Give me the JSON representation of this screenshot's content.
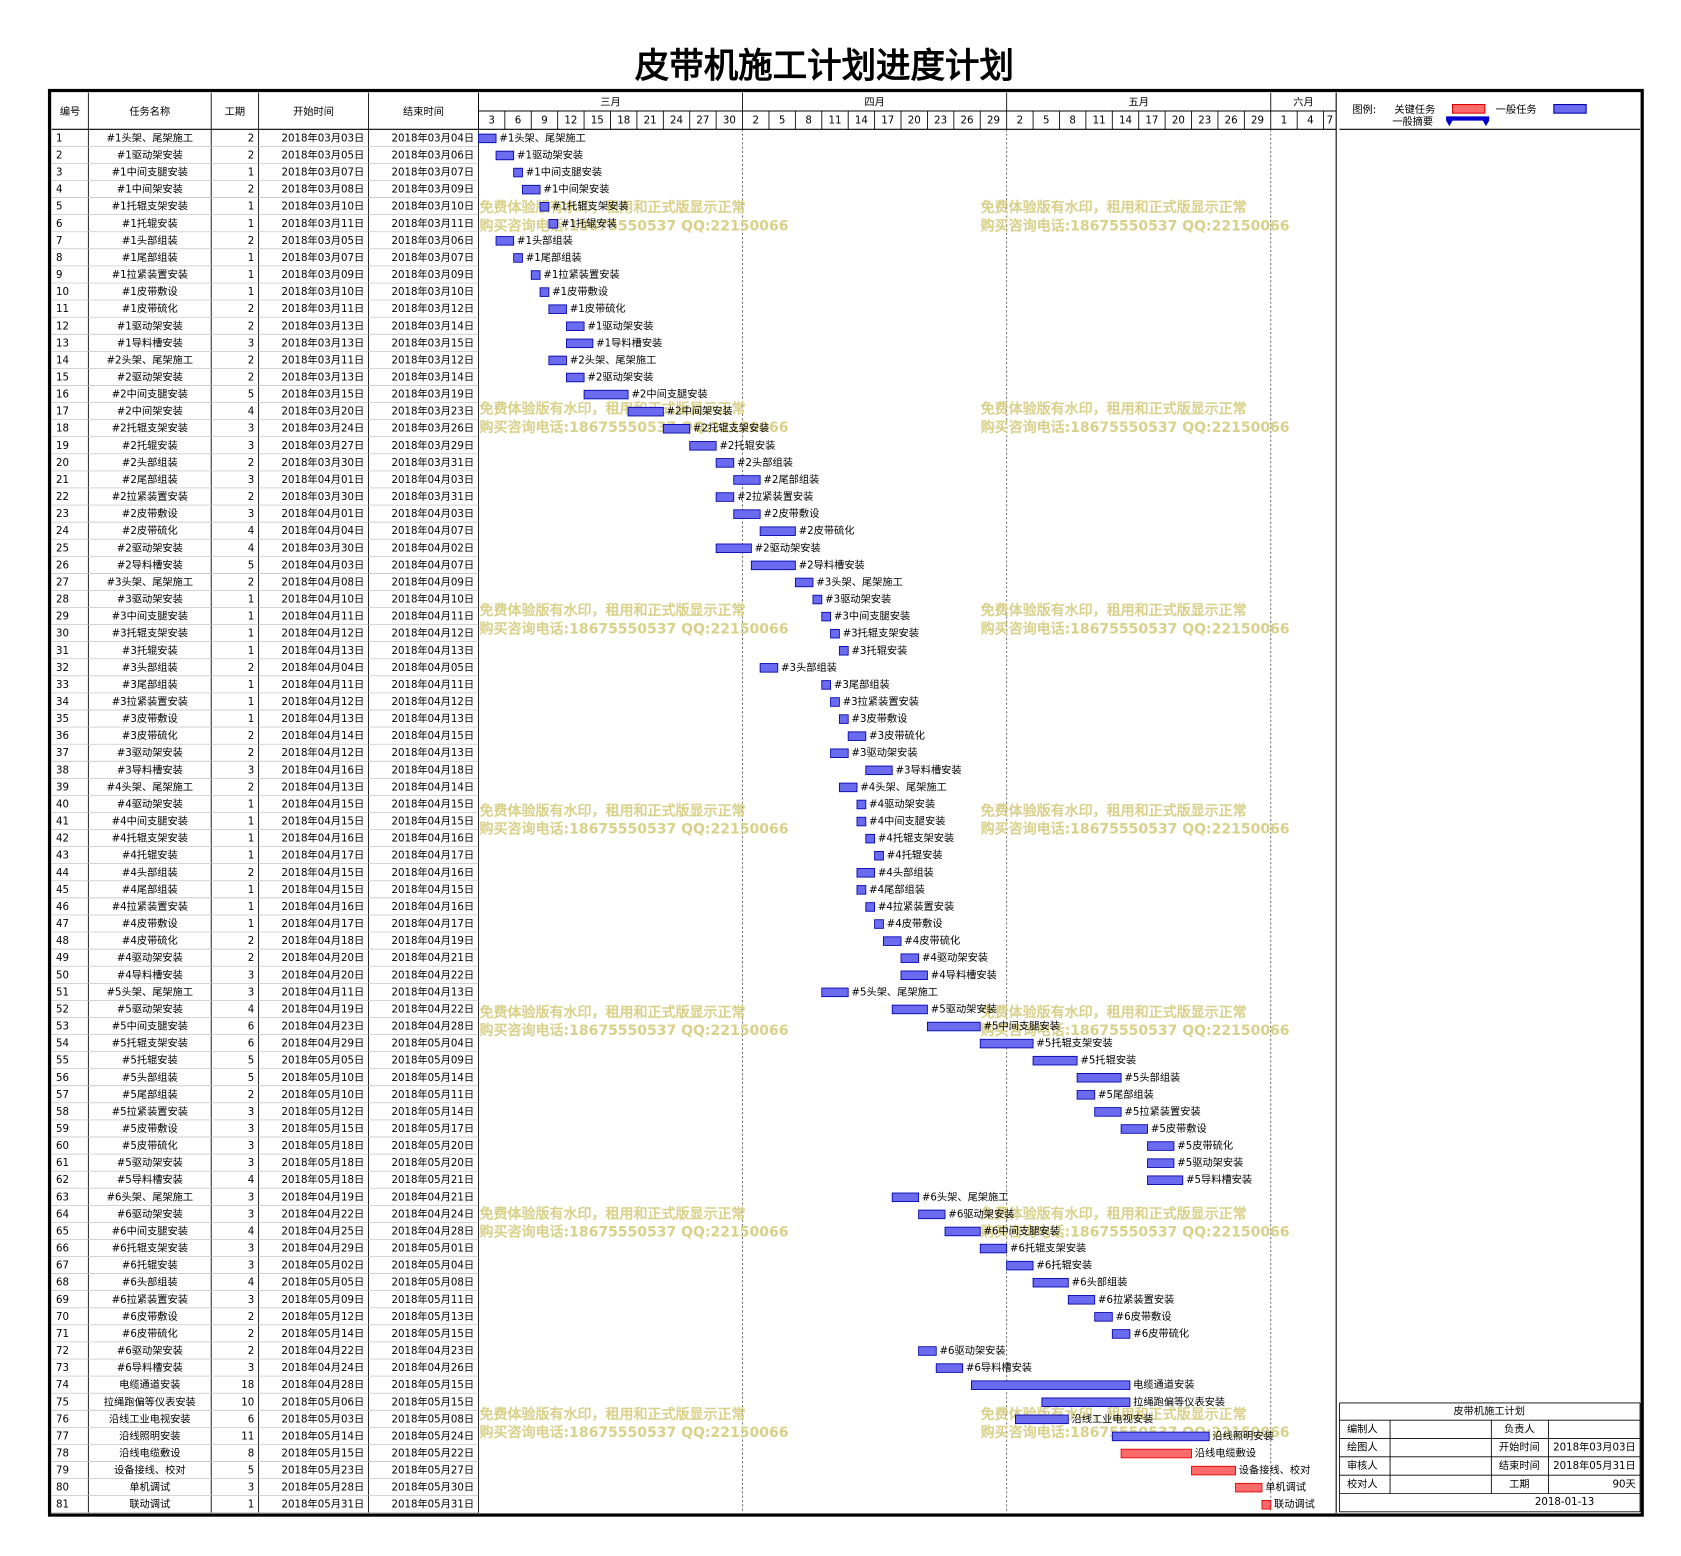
{
  "title": "皮带机施工计划进度计划",
  "columns": [
    "编号",
    "任务名称",
    "工期",
    "开始时间",
    "结束时间"
  ],
  "timeline": {
    "months": [
      {
        "label": "三月",
        "days": [
          3,
          6,
          9,
          12,
          15,
          18,
          21,
          24,
          27,
          30
        ]
      },
      {
        "label": "四月",
        "days": [
          2,
          5,
          8,
          11,
          14,
          17,
          20,
          23,
          26,
          29
        ]
      },
      {
        "label": "五月",
        "days": [
          2,
          5,
          8,
          11,
          14,
          17,
          20,
          23,
          26,
          29
        ]
      },
      {
        "label": "六月",
        "days": [
          1,
          4,
          7
        ]
      }
    ]
  },
  "legend": {
    "title": "图例:",
    "critical": "关键任务",
    "task": "一般任务",
    "summary": "一般摘要",
    "critical_color": "#ff6b6b",
    "task_color": "#6b6bf0"
  },
  "info": {
    "title": "皮带机施工计划",
    "left_labels": [
      "编制人",
      "绘图人",
      "审核人",
      "校对人"
    ],
    "right_labels": [
      "负责人",
      "开始时间",
      "结束时间",
      "工期"
    ],
    "right_values": [
      "2018年03月03日",
      "2018年05月31日",
      "90天"
    ],
    "date": "2018-01-13"
  },
  "watermark": [
    "免费体验版有水印，租用和正式版显示正常",
    "购买咨询电话:18675550537 QQ:22150066"
  ],
  "tasks": [
    {
      "id": 1,
      "name": "#1头架、尾架施工",
      "days": 2,
      "start": "2018年03月03日",
      "end": "2018年03月04日"
    },
    {
      "id": 2,
      "name": "#1驱动架安装",
      "days": 2,
      "start": "2018年03月05日",
      "end": "2018年03月06日"
    },
    {
      "id": 3,
      "name": "#1中间支腿安装",
      "days": 1,
      "start": "2018年03月07日",
      "end": "2018年03月07日"
    },
    {
      "id": 4,
      "name": "#1中间架安装",
      "days": 2,
      "start": "2018年03月08日",
      "end": "2018年03月09日"
    },
    {
      "id": 5,
      "name": "#1托辊支架安装",
      "days": 1,
      "start": "2018年03月10日",
      "end": "2018年03月10日"
    },
    {
      "id": 6,
      "name": "#1托辊安装",
      "days": 1,
      "start": "2018年03月11日",
      "end": "2018年03月11日"
    },
    {
      "id": 7,
      "name": "#1头部组装",
      "days": 2,
      "start": "2018年03月05日",
      "end": "2018年03月06日"
    },
    {
      "id": 8,
      "name": "#1尾部组装",
      "days": 1,
      "start": "2018年03月07日",
      "end": "2018年03月07日"
    },
    {
      "id": 9,
      "name": "#1拉紧装置安装",
      "days": 1,
      "start": "2018年03月09日",
      "end": "2018年03月09日"
    },
    {
      "id": 10,
      "name": "#1皮带敷设",
      "days": 1,
      "start": "2018年03月10日",
      "end": "2018年03月10日"
    },
    {
      "id": 11,
      "name": "#1皮带硫化",
      "days": 2,
      "start": "2018年03月11日",
      "end": "2018年03月12日"
    },
    {
      "id": 12,
      "name": "#1驱动架安装",
      "days": 2,
      "start": "2018年03月13日",
      "end": "2018年03月14日"
    },
    {
      "id": 13,
      "name": "#1导料槽安装",
      "days": 3,
      "start": "2018年03月13日",
      "end": "2018年03月15日"
    },
    {
      "id": 14,
      "name": "#2头架、尾架施工",
      "days": 2,
      "start": "2018年03月11日",
      "end": "2018年03月12日"
    },
    {
      "id": 15,
      "name": "#2驱动架安装",
      "days": 2,
      "start": "2018年03月13日",
      "end": "2018年03月14日"
    },
    {
      "id": 16,
      "name": "#2中间支腿安装",
      "days": 5,
      "start": "2018年03月15日",
      "end": "2018年03月19日"
    },
    {
      "id": 17,
      "name": "#2中间架安装",
      "days": 4,
      "start": "2018年03月20日",
      "end": "2018年03月23日"
    },
    {
      "id": 18,
      "name": "#2托辊支架安装",
      "days": 3,
      "start": "2018年03月24日",
      "end": "2018年03月26日"
    },
    {
      "id": 19,
      "name": "#2托辊安装",
      "days": 3,
      "start": "2018年03月27日",
      "end": "2018年03月29日"
    },
    {
      "id": 20,
      "name": "#2头部组装",
      "days": 2,
      "start": "2018年03月30日",
      "end": "2018年03月31日"
    },
    {
      "id": 21,
      "name": "#2尾部组装",
      "days": 3,
      "start": "2018年04月01日",
      "end": "2018年04月03日"
    },
    {
      "id": 22,
      "name": "#2拉紧装置安装",
      "days": 2,
      "start": "2018年03月30日",
      "end": "2018年03月31日"
    },
    {
      "id": 23,
      "name": "#2皮带敷设",
      "days": 3,
      "start": "2018年04月01日",
      "end": "2018年04月03日"
    },
    {
      "id": 24,
      "name": "#2皮带硫化",
      "days": 4,
      "start": "2018年04月04日",
      "end": "2018年04月07日"
    },
    {
      "id": 25,
      "name": "#2驱动架安装",
      "days": 4,
      "start": "2018年03月30日",
      "end": "2018年04月02日"
    },
    {
      "id": 26,
      "name": "#2导料槽安装",
      "days": 5,
      "start": "2018年04月03日",
      "end": "2018年04月07日"
    },
    {
      "id": 27,
      "name": "#3头架、尾架施工",
      "days": 2,
      "start": "2018年04月08日",
      "end": "2018年04月09日"
    },
    {
      "id": 28,
      "name": "#3驱动架安装",
      "days": 1,
      "start": "2018年04月10日",
      "end": "2018年04月10日"
    },
    {
      "id": 29,
      "name": "#3中间支腿安装",
      "days": 1,
      "start": "2018年04月11日",
      "end": "2018年04月11日"
    },
    {
      "id": 30,
      "name": "#3托辊支架安装",
      "days": 1,
      "start": "2018年04月12日",
      "end": "2018年04月12日"
    },
    {
      "id": 31,
      "name": "#3托辊安装",
      "days": 1,
      "start": "2018年04月13日",
      "end": "2018年04月13日"
    },
    {
      "id": 32,
      "name": "#3头部组装",
      "days": 2,
      "start": "2018年04月04日",
      "end": "2018年04月05日"
    },
    {
      "id": 33,
      "name": "#3尾部组装",
      "days": 1,
      "start": "2018年04月11日",
      "end": "2018年04月11日"
    },
    {
      "id": 34,
      "name": "#3拉紧装置安装",
      "days": 1,
      "start": "2018年04月12日",
      "end": "2018年04月12日"
    },
    {
      "id": 35,
      "name": "#3皮带敷设",
      "days": 1,
      "start": "2018年04月13日",
      "end": "2018年04月13日"
    },
    {
      "id": 36,
      "name": "#3皮带硫化",
      "days": 2,
      "start": "2018年04月14日",
      "end": "2018年04月15日"
    },
    {
      "id": 37,
      "name": "#3驱动架安装",
      "days": 2,
      "start": "2018年04月12日",
      "end": "2018年04月13日"
    },
    {
      "id": 38,
      "name": "#3导料槽安装",
      "days": 3,
      "start": "2018年04月16日",
      "end": "2018年04月18日"
    },
    {
      "id": 39,
      "name": "#4头架、尾架施工",
      "days": 2,
      "start": "2018年04月13日",
      "end": "2018年04月14日"
    },
    {
      "id": 40,
      "name": "#4驱动架安装",
      "days": 1,
      "start": "2018年04月15日",
      "end": "2018年04月15日"
    },
    {
      "id": 41,
      "name": "#4中间支腿安装",
      "days": 1,
      "start": "2018年04月15日",
      "end": "2018年04月15日"
    },
    {
      "id": 42,
      "name": "#4托辊支架安装",
      "days": 1,
      "start": "2018年04月16日",
      "end": "2018年04月16日"
    },
    {
      "id": 43,
      "name": "#4托辊安装",
      "days": 1,
      "start": "2018年04月17日",
      "end": "2018年04月17日"
    },
    {
      "id": 44,
      "name": "#4头部组装",
      "days": 2,
      "start": "2018年04月15日",
      "end": "2018年04月16日"
    },
    {
      "id": 45,
      "name": "#4尾部组装",
      "days": 1,
      "start": "2018年04月15日",
      "end": "2018年04月15日"
    },
    {
      "id": 46,
      "name": "#4拉紧装置安装",
      "days": 1,
      "start": "2018年04月16日",
      "end": "2018年04月16日"
    },
    {
      "id": 47,
      "name": "#4皮带敷设",
      "days": 1,
      "start": "2018年04月17日",
      "end": "2018年04月17日"
    },
    {
      "id": 48,
      "name": "#4皮带硫化",
      "days": 2,
      "start": "2018年04月18日",
      "end": "2018年04月19日"
    },
    {
      "id": 49,
      "name": "#4驱动架安装",
      "days": 2,
      "start": "2018年04月20日",
      "end": "2018年04月21日"
    },
    {
      "id": 50,
      "name": "#4导料槽安装",
      "days": 3,
      "start": "2018年04月20日",
      "end": "2018年04月22日"
    },
    {
      "id": 51,
      "name": "#5头架、尾架施工",
      "days": 3,
      "start": "2018年04月11日",
      "end": "2018年04月13日"
    },
    {
      "id": 52,
      "name": "#5驱动架安装",
      "days": 4,
      "start": "2018年04月19日",
      "end": "2018年04月22日"
    },
    {
      "id": 53,
      "name": "#5中间支腿安装",
      "days": 6,
      "start": "2018年04月23日",
      "end": "2018年04月28日"
    },
    {
      "id": 54,
      "name": "#5托辊支架安装",
      "days": 6,
      "start": "2018年04月29日",
      "end": "2018年05月04日"
    },
    {
      "id": 55,
      "name": "#5托辊安装",
      "days": 5,
      "start": "2018年05月05日",
      "end": "2018年05月09日"
    },
    {
      "id": 56,
      "name": "#5头部组装",
      "days": 5,
      "start": "2018年05月10日",
      "end": "2018年05月14日"
    },
    {
      "id": 57,
      "name": "#5尾部组装",
      "days": 2,
      "start": "2018年05月10日",
      "end": "2018年05月11日"
    },
    {
      "id": 58,
      "name": "#5拉紧装置安装",
      "days": 3,
      "start": "2018年05月12日",
      "end": "2018年05月14日"
    },
    {
      "id": 59,
      "name": "#5皮带敷设",
      "days": 3,
      "start": "2018年05月15日",
      "end": "2018年05月17日"
    },
    {
      "id": 60,
      "name": "#5皮带硫化",
      "days": 3,
      "start": "2018年05月18日",
      "end": "2018年05月20日"
    },
    {
      "id": 61,
      "name": "#5驱动架安装",
      "days": 3,
      "start": "2018年05月18日",
      "end": "2018年05月20日"
    },
    {
      "id": 62,
      "name": "#5导料槽安装",
      "days": 4,
      "start": "2018年05月18日",
      "end": "2018年05月21日"
    },
    {
      "id": 63,
      "name": "#6头架、尾架施工",
      "days": 3,
      "start": "2018年04月19日",
      "end": "2018年04月21日"
    },
    {
      "id": 64,
      "name": "#6驱动架安装",
      "days": 3,
      "start": "2018年04月22日",
      "end": "2018年04月24日"
    },
    {
      "id": 65,
      "name": "#6中间支腿安装",
      "days": 4,
      "start": "2018年04月25日",
      "end": "2018年04月28日"
    },
    {
      "id": 66,
      "name": "#6托辊支架安装",
      "days": 3,
      "start": "2018年04月29日",
      "end": "2018年05月01日"
    },
    {
      "id": 67,
      "name": "#6托辊安装",
      "days": 3,
      "start": "2018年05月02日",
      "end": "2018年05月04日"
    },
    {
      "id": 68,
      "name": "#6头部组装",
      "days": 4,
      "start": "2018年05月05日",
      "end": "2018年05月08日"
    },
    {
      "id": 69,
      "name": "#6拉紧装置安装",
      "days": 3,
      "start": "2018年05月09日",
      "end": "2018年05月11日"
    },
    {
      "id": 70,
      "name": "#6皮带敷设",
      "days": 2,
      "start": "2018年05月12日",
      "end": "2018年05月13日"
    },
    {
      "id": 71,
      "name": "#6皮带硫化",
      "days": 2,
      "start": "2018年05月14日",
      "end": "2018年05月15日"
    },
    {
      "id": 72,
      "name": "#6驱动架安装",
      "days": 2,
      "start": "2018年04月22日",
      "end": "2018年04月23日"
    },
    {
      "id": 73,
      "name": "#6导料槽安装",
      "days": 3,
      "start": "2018年04月24日",
      "end": "2018年04月26日"
    },
    {
      "id": 74,
      "name": "电缆通道安装",
      "days": 18,
      "start": "2018年04月28日",
      "end": "2018年05月15日"
    },
    {
      "id": 75,
      "name": "拉绳跑偏等仪表安装",
      "days": 10,
      "start": "2018年05月06日",
      "end": "2018年05月15日"
    },
    {
      "id": 76,
      "name": "沿线工业电视安装",
      "days": 6,
      "start": "2018年05月03日",
      "end": "2018年05月08日"
    },
    {
      "id": 77,
      "name": "沿线照明安装",
      "days": 11,
      "start": "2018年05月14日",
      "end": "2018年05月24日"
    },
    {
      "id": 78,
      "name": "沿线电缆敷设",
      "days": 8,
      "start": "2018年05月15日",
      "end": "2018年05月22日",
      "critical": true
    },
    {
      "id": 79,
      "name": "设备接线、校对",
      "days": 5,
      "start": "2018年05月23日",
      "end": "2018年05月27日",
      "critical": true
    },
    {
      "id": 80,
      "name": "单机调试",
      "days": 3,
      "start": "2018年05月28日",
      "end": "2018年05月30日",
      "critical": true
    },
    {
      "id": 81,
      "name": "联动调试",
      "days": 1,
      "start": "2018年05月31日",
      "end": "2018年05月31日",
      "critical": true
    }
  ]
}
